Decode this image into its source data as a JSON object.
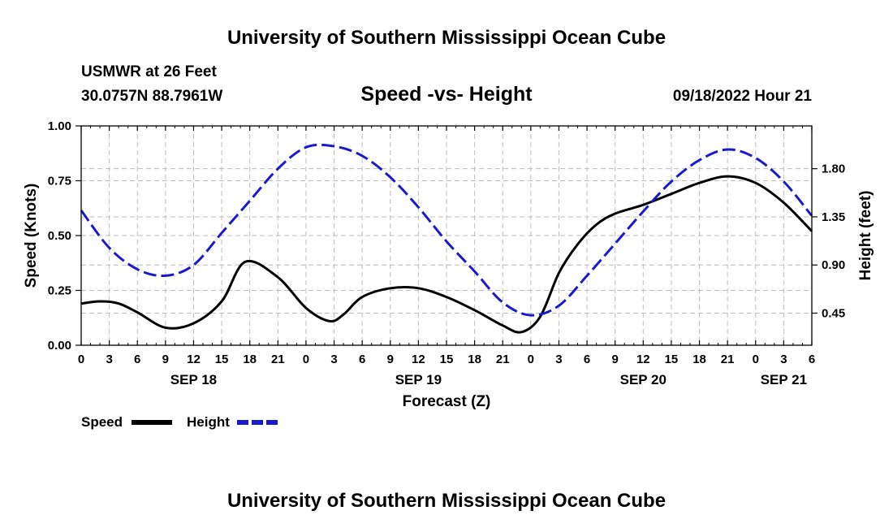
{
  "header": {
    "title": "University of Southern Mississippi Ocean Cube",
    "footer_title": "University of Southern Mississippi Ocean Cube",
    "station": "USMWR at 26 Feet",
    "coords": "30.0757N  88.7961W",
    "datetime": "09/18/2022 Hour 21"
  },
  "chart_data": {
    "type": "line",
    "title": "Speed -vs- Height",
    "xlabel": "Forecast (Z)",
    "ylabel": "Speed (Knots)",
    "y2label": "Height (feet)",
    "x_unit": "hours from SEP 18 00Z",
    "xlim": [
      0,
      78
    ],
    "ylim": [
      0,
      1
    ],
    "y2lim": [
      0.15,
      2.2
    ],
    "y_ticks": [
      0,
      0.25,
      0.5,
      0.75,
      1.0
    ],
    "y_tick_labels": [
      "0.00",
      "0.25",
      "0.50",
      "0.75",
      "1.00"
    ],
    "y2_ticks": [
      0.45,
      0.9,
      1.35,
      1.8
    ],
    "y2_tick_labels": [
      "0.45",
      "0.90",
      "1.35",
      "1.80"
    ],
    "x_ticks": [
      0,
      3,
      6,
      9,
      12,
      15,
      18,
      21,
      24,
      27,
      30,
      33,
      36,
      39,
      42,
      45,
      48,
      51,
      54,
      57,
      60,
      63,
      66,
      69,
      72,
      75,
      78
    ],
    "x_tick_labels": [
      "0",
      "3",
      "6",
      "9",
      "12",
      "15",
      "18",
      "21",
      "0",
      "3",
      "6",
      "9",
      "12",
      "15",
      "18",
      "21",
      "0",
      "3",
      "6",
      "9",
      "12",
      "15",
      "18",
      "21",
      "0",
      "3",
      "6"
    ],
    "day_labels": [
      {
        "label": "SEP 18",
        "x": 12
      },
      {
        "label": "SEP 19",
        "x": 36
      },
      {
        "label": "SEP 20",
        "x": 60
      },
      {
        "label": "SEP 21",
        "x": 75
      }
    ],
    "series": [
      {
        "name": "Speed",
        "axis": "left",
        "color": "#000000",
        "style": "solid",
        "x": [
          0,
          2,
          4,
          6,
          9,
          12,
          15,
          17.5,
          21,
          24,
          26.5,
          28,
          30,
          33,
          36,
          39,
          42,
          45,
          47,
          49,
          51,
          53,
          55,
          57,
          60,
          63,
          66,
          69,
          72,
          75,
          78
        ],
        "y": [
          0.19,
          0.2,
          0.19,
          0.15,
          0.08,
          0.1,
          0.2,
          0.38,
          0.31,
          0.17,
          0.11,
          0.14,
          0.22,
          0.26,
          0.26,
          0.22,
          0.16,
          0.09,
          0.06,
          0.13,
          0.33,
          0.46,
          0.55,
          0.6,
          0.64,
          0.69,
          0.74,
          0.77,
          0.74,
          0.65,
          0.52
        ]
      },
      {
        "name": "Height",
        "axis": "right",
        "color": "#1a1acc",
        "style": "dashed",
        "x": [
          0,
          3,
          6,
          9,
          12,
          15,
          18,
          21,
          24,
          27,
          30,
          33,
          36,
          39,
          42,
          45,
          48,
          51,
          54,
          57,
          60,
          63,
          66,
          69,
          72,
          75,
          78
        ],
        "y": [
          1.41,
          1.06,
          0.86,
          0.8,
          0.9,
          1.2,
          1.5,
          1.8,
          2.0,
          2.01,
          1.92,
          1.72,
          1.44,
          1.12,
          0.84,
          0.55,
          0.43,
          0.52,
          0.8,
          1.1,
          1.4,
          1.68,
          1.88,
          1.98,
          1.9,
          1.68,
          1.36
        ]
      }
    ],
    "legend": [
      {
        "label": "Speed",
        "color": "#000000",
        "style": "solid"
      },
      {
        "label": "Height",
        "color": "#1a1acc",
        "style": "dashed"
      }
    ],
    "grid": true
  }
}
